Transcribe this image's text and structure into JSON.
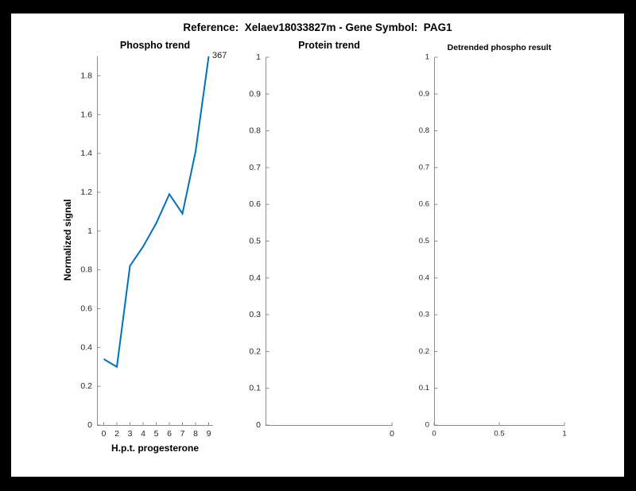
{
  "figure": {
    "title": "Reference:  Xelaev18033827m - Gene Symbol:  PAG1",
    "background": "#ffffff",
    "border_color": "#000000"
  },
  "colors": {
    "axis_line": "#8c8c8c",
    "tick_text": "#262626",
    "title_text": "#000000",
    "series_blue": "#0072BD"
  },
  "chart_data": [
    {
      "type": "line",
      "title": "Phospho trend",
      "xlabel": "H.p.t. progesterone",
      "ylabel": "Normalized signal",
      "x_tick_labels": [
        "0",
        "2",
        "3",
        "4",
        "5",
        "6",
        "7",
        "8",
        "9"
      ],
      "x_values": [
        0,
        2,
        3,
        4,
        5,
        6,
        7,
        8,
        9
      ],
      "values": [
        0.34,
        0.3,
        0.82,
        0.92,
        1.04,
        1.19,
        1.09,
        1.41,
        1.9
      ],
      "ylim": [
        0,
        1.9
      ],
      "y_tick_values": [
        0,
        0.2,
        0.4,
        0.6,
        0.8,
        1.0,
        1.2,
        1.4,
        1.6,
        1.8
      ],
      "y_tick_labels": [
        "0",
        "0.2",
        "0.4",
        "0.6",
        "0.8",
        "1",
        "1.2",
        "1.4",
        "1.6",
        "1.8"
      ],
      "annotation": "367",
      "line_color": "#0072BD",
      "grid": "off",
      "legend": "none"
    },
    {
      "type": "line",
      "title": "Protein trend",
      "xlabel": "",
      "ylabel": "",
      "x_tick_labels": [
        "0"
      ],
      "x_values": [],
      "values": [],
      "ylim": [
        0,
        1
      ],
      "y_tick_values": [
        0,
        0.1,
        0.2,
        0.3,
        0.4,
        0.5,
        0.6,
        0.7,
        0.8,
        0.9,
        1.0
      ],
      "y_tick_labels": [
        "0",
        "0.1",
        "0.2",
        "0.3",
        "0.4",
        "0.5",
        "0.6",
        "0.7",
        "0.8",
        "0.9",
        "1"
      ],
      "grid": "off",
      "legend": "none"
    },
    {
      "type": "line",
      "title": "Detrended phospho result",
      "xlabel": "",
      "ylabel": "",
      "x_tick_labels": [
        "0",
        "0.5",
        "1"
      ],
      "x_tick_values": [
        0,
        0.5,
        1
      ],
      "x_values": [],
      "values": [],
      "ylim": [
        0,
        1
      ],
      "y_tick_values": [
        0,
        0.1,
        0.2,
        0.3,
        0.4,
        0.5,
        0.6,
        0.7,
        0.8,
        0.9,
        1.0
      ],
      "y_tick_labels": [
        "0",
        "0.1",
        "0.2",
        "0.3",
        "0.4",
        "0.5",
        "0.6",
        "0.7",
        "0.8",
        "0.9",
        "1"
      ],
      "grid": "off",
      "legend": "none"
    }
  ]
}
